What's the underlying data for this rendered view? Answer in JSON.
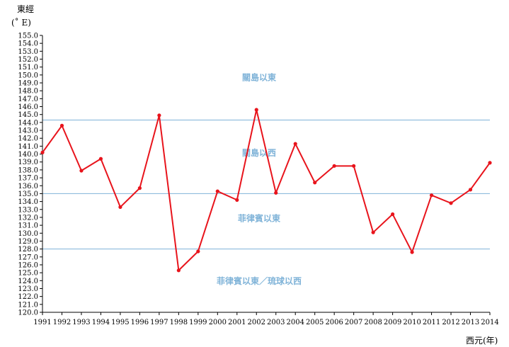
{
  "chart_data": {
    "type": "line",
    "ylabel_line1": "東經",
    "ylabel_line2": "(˚ E)",
    "xlabel": "西元(年)",
    "ylim": [
      120.0,
      155.0
    ],
    "ytick_step": 1.0,
    "categories": [
      "1991",
      "1992",
      "1993",
      "1994",
      "1995",
      "1996",
      "1997",
      "1998",
      "1999",
      "2000",
      "2001",
      "2002",
      "2003",
      "2004",
      "2005",
      "2006",
      "2007",
      "2008",
      "2009",
      "2010",
      "2011",
      "2012",
      "2013",
      "2014"
    ],
    "series": [
      {
        "values": [
          140.2,
          143.6,
          137.9,
          139.4,
          133.3,
          135.7,
          144.9,
          125.3,
          127.7,
          135.3,
          134.2,
          145.6,
          135.1,
          141.3,
          136.4,
          138.5,
          138.5,
          130.1,
          132.4,
          127.6,
          134.8,
          133.8,
          135.5,
          138.9
        ],
        "color": "#e8141c"
      }
    ],
    "reference_lines": [
      {
        "value": 144.3,
        "color": "#7fb3d8"
      },
      {
        "value": 135.0,
        "color": "#7fb3d8"
      },
      {
        "value": 128.0,
        "color": "#7fb3d8"
      }
    ],
    "regions": [
      {
        "label": "關島以東",
        "y": 149.3
      },
      {
        "label": "關島以西",
        "y": 139.8
      },
      {
        "label": "菲律賓以東",
        "y": 131.5
      },
      {
        "label": "菲律賓以東／琉球以西",
        "y": 123.6
      }
    ],
    "grid": false,
    "legend": "none"
  }
}
